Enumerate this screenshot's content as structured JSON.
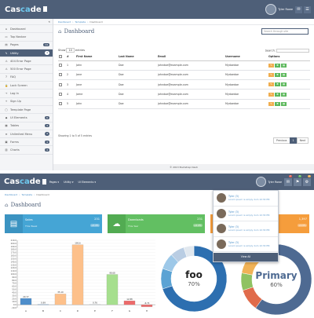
{
  "app": {
    "logo_a": "Cas",
    "logo_b": "ca",
    "logo_c": "de"
  },
  "top": {
    "user_name": "Tyler Rowe",
    "mail_icon": "mail-icon",
    "menu_icon": "gear-icon"
  },
  "sidebar": {
    "items": [
      {
        "label": "Dashboard",
        "icon": "⌂"
      },
      {
        "label": "Top Navbar",
        "icon": "▭"
      },
      {
        "label": "Pages",
        "icon": "▤",
        "badge": "14"
      },
      {
        "label": "Utility",
        "icon": "✎",
        "badge": "4",
        "active": true
      },
      {
        "label": "404 Error Page",
        "icon": "⚠"
      },
      {
        "label": "500 Error Page",
        "icon": "⚠"
      },
      {
        "label": "FAQ",
        "icon": "?"
      },
      {
        "label": "Lock Screen",
        "icon": "🔒"
      },
      {
        "label": "Log In",
        "icon": "→"
      },
      {
        "label": "Sign Up",
        "icon": "+"
      },
      {
        "label": "Template Page",
        "icon": "▢"
      },
      {
        "label": "UI Elements",
        "icon": "◆",
        "badge": "6"
      },
      {
        "label": "Tables",
        "icon": "▦",
        "badge": "4"
      },
      {
        "label": "Unlimited Menu",
        "icon": "≡",
        "badge": "4"
      },
      {
        "label": "Forms",
        "icon": "▣",
        "badge": "4"
      },
      {
        "label": "Charts",
        "icon": "▥",
        "badge": "4"
      }
    ]
  },
  "breadcrumb": {
    "a": "Dashboard",
    "b": "Template",
    "c": "Dashboard"
  },
  "page_title": "Dashboard",
  "search_placeholder": "Search through site",
  "table": {
    "show": "Show",
    "entries_val": "10",
    "entries": "entries",
    "search_label": "Search:",
    "headers": [
      "#",
      "First Name",
      "Last Name",
      "Email",
      "Username",
      "Options"
    ],
    "rows": [
      {
        "n": "1",
        "first": "John",
        "last": "Doe",
        "email": "johndoe@example.com",
        "user": "Mydoedoe"
      },
      {
        "n": "2",
        "first": "Jane",
        "last": "Doe",
        "email": "johndoe@example.com",
        "user": "Mydoedoe"
      },
      {
        "n": "3",
        "first": "Jane",
        "last": "Doe",
        "email": "johndoe@example.com",
        "user": "Mydoedoe"
      },
      {
        "n": "4",
        "first": "Jame",
        "last": "Doe",
        "email": "johndoe@example.com",
        "user": "Mydoedoe"
      },
      {
        "n": "5",
        "first": "John",
        "last": "Doe",
        "email": "johndoe@example.com",
        "user": "Mydoedoe"
      }
    ],
    "info": "Showing 1 to 5 of 5 entries",
    "prev": "Previous",
    "page": "1",
    "next": "Next"
  },
  "footer": "© 2013 Bootstrap Dash",
  "top2": {
    "nav": [
      "Pages ▾",
      "Utility ▾",
      "UI Elements ▾"
    ],
    "user_name": "Tyler Rowe",
    "badges": [
      "2",
      "3",
      "4"
    ]
  },
  "breadcrumb2": {
    "a": "Dashboard",
    "b": "Template",
    "c": "Dashboard"
  },
  "page_title2": "Dashboard",
  "stats": [
    {
      "name": "Sales",
      "sub": "This Week",
      "value": "231",
      "pill": "+2.4%",
      "color": "#45a5d5",
      "icon": "🛒"
    },
    {
      "name": "Downloads",
      "sub": "This Year",
      "value": "231",
      "pill": "+2.4%",
      "color": "#62bf62"
    },
    {
      "name": "",
      "sub": "",
      "value": "1,397",
      "pill": "+4.9%",
      "color": "#f59d3c"
    }
  ],
  "messages": {
    "items": [
      {
        "name": "Tyler (3)",
        "text": "Lorem ipsum is simply dum 10:30 PM"
      },
      {
        "name": "Tyler (3)",
        "text": "Lorem ipsum is simply dum 10:30 PM"
      },
      {
        "name": "Tyler (3)",
        "text": "Lorem ipsum is simply dum 10:30 PM"
      },
      {
        "name": "Tyler (3)",
        "text": "Lorem ipsum is simply dum 10:30 PM"
      }
    ],
    "view_all": "View All"
  },
  "chart_data": [
    {
      "type": "bar",
      "categories": [
        "A",
        "B",
        "C",
        "D",
        "E",
        "F",
        "G",
        "H"
      ],
      "values": [
        20.77,
        0.99,
        35.1,
        195.6,
        0.76,
        98.68,
        12.88,
        -6.74
      ],
      "value_labels": [
        "20.77",
        "0.99",
        "35.10",
        "195.6",
        "0.76",
        "98.68",
        "12.88",
        "-6.74"
      ],
      "colors": [
        "#4e8ecb",
        "#4e8ecb",
        "#fdc08a",
        "#fdc08a",
        "#b9c4d2",
        "#a6df8e",
        "#ec6a6a",
        "#ec6a6a"
      ],
      "yticks": [
        "210.0",
        "200.0",
        "190.0",
        "180.0",
        "170.0",
        "160.0",
        "150.0",
        "140.0",
        "130.0",
        "120.0",
        "110.0",
        "100.0",
        "90.0",
        "80.0",
        "70.0",
        "60.0",
        "50.0",
        "40.0",
        "30.0",
        "20.0",
        "10.0",
        "0.0",
        "-10.0"
      ],
      "ylim": [
        -10,
        210
      ]
    },
    {
      "type": "pie",
      "center_title": "foo",
      "center_value": "70%",
      "values": [
        70,
        10,
        8,
        7,
        5
      ],
      "colors": [
        "#2d6fb0",
        "#5ba3d4",
        "#9dc8e8",
        "#b9cde3",
        "#e1e8ef"
      ]
    },
    {
      "type": "pie",
      "center_title": "Primary",
      "center_value": "60%",
      "values": [
        60,
        10,
        8,
        12,
        10
      ],
      "colors": [
        "#4e6a92",
        "#e06b4b",
        "#8fc262",
        "#f0b256",
        "#9fb2cc"
      ]
    }
  ]
}
